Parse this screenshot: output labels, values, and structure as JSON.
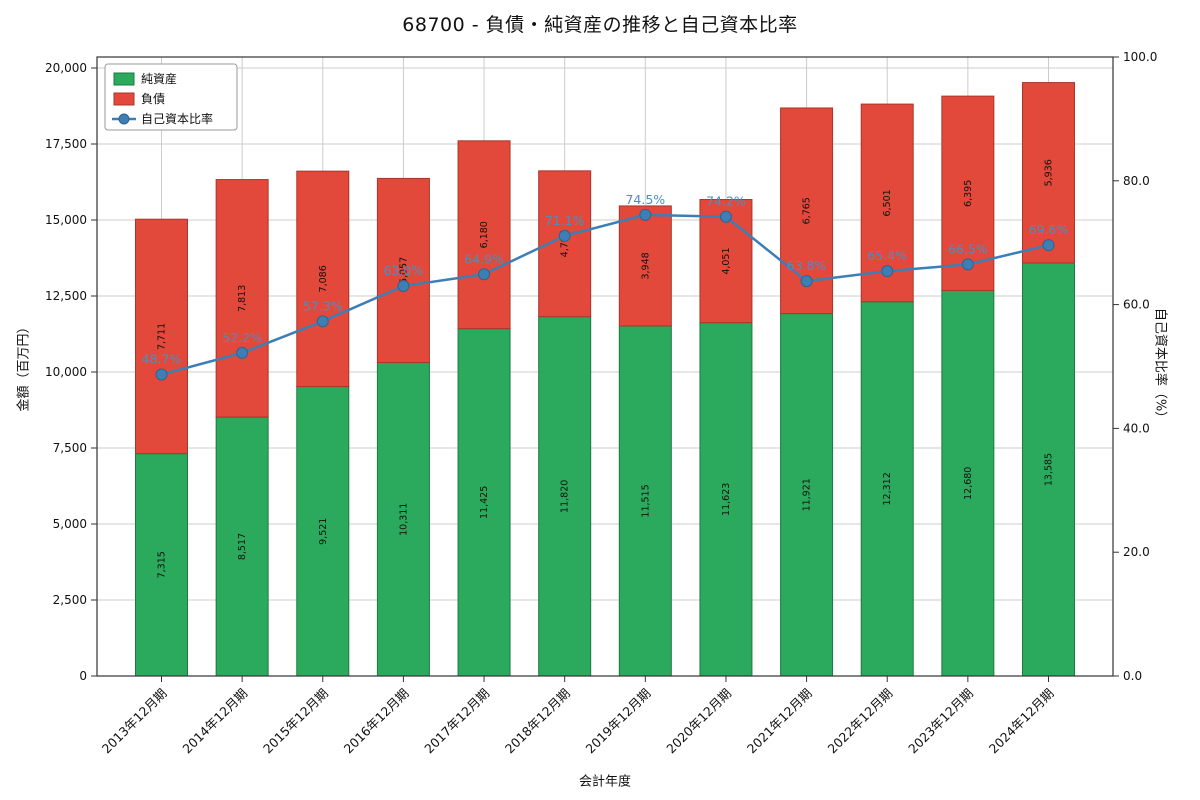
{
  "title": "68700 - 負債・純資産の推移と自己資本比率",
  "chart_data": {
    "type": "bar",
    "subtype": "stacked-bars-with-ratio-line",
    "categories": [
      "2013年12月期",
      "2014年12月期",
      "2015年12月期",
      "2016年12月期",
      "2017年12月期",
      "2018年12月期",
      "2019年12月期",
      "2020年12月期",
      "2021年12月期",
      "2022年12月期",
      "2023年12月期",
      "2024年12月期"
    ],
    "series": [
      {
        "name": "純資産",
        "type": "bar",
        "axis": "left",
        "color": "#2ba95c",
        "edge_color": "#1c7a42",
        "values": [
          7315,
          8517,
          9521,
          10311,
          11425,
          11820,
          11515,
          11623,
          11921,
          12312,
          12680,
          13585
        ]
      },
      {
        "name": "負債",
        "type": "bar",
        "axis": "left",
        "color": "#e2493a",
        "edge_color": "#a8362b",
        "values": [
          7711,
          7813,
          7086,
          6057,
          6180,
          4797,
          3948,
          4051,
          6765,
          6501,
          6395,
          5936
        ]
      },
      {
        "name": "自己資本比率",
        "type": "line",
        "axis": "right",
        "unit": "%",
        "color": "#3d7eb5",
        "marker_edge": "#2e6391",
        "values": [
          48.7,
          52.2,
          57.3,
          63.0,
          64.9,
          71.1,
          74.5,
          74.2,
          63.8,
          65.4,
          66.5,
          69.6
        ]
      }
    ],
    "xlabel": "会計年度",
    "ylabel_left": "金額（百万円）",
    "ylabel_right": "自己資本比率（%）",
    "left_ticks": [
      0,
      2500,
      5000,
      7500,
      10000,
      12500,
      15000,
      17500,
      20000
    ],
    "right_ticks": [
      0,
      20,
      40,
      60,
      80,
      100
    ],
    "ylim_left": [
      0,
      20362
    ],
    "ylim_right": [
      0,
      100
    ],
    "grid": true,
    "legend_position": "upper-left",
    "ratio_label_color": "#4a8fc2"
  }
}
